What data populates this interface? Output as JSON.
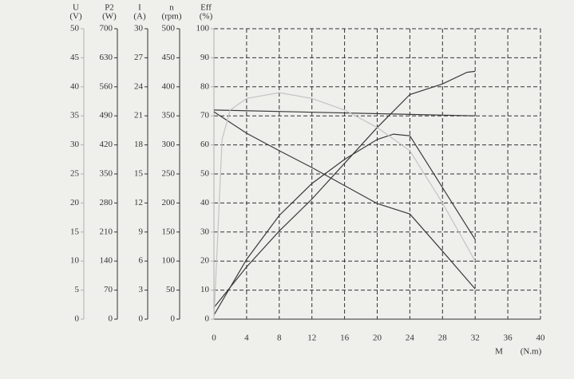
{
  "chart_data": {
    "type": "line",
    "xlabel": "M",
    "xunit": "(N.m)",
    "xlim": [
      0,
      40
    ],
    "xticks": [
      0,
      4,
      8,
      12,
      16,
      20,
      24,
      28,
      32,
      36,
      40
    ],
    "grid": true,
    "axes": [
      {
        "name": "U",
        "unit": "(V)",
        "ylim": [
          0,
          50
        ],
        "yticks": [
          0,
          5,
          10,
          15,
          20,
          25,
          30,
          35,
          40,
          45,
          50
        ],
        "color": "#b0b0b0"
      },
      {
        "name": "P2",
        "unit": "(W)",
        "ylim": [
          0,
          700
        ],
        "yticks": [
          0,
          70,
          140,
          210,
          280,
          350,
          420,
          490,
          560,
          630,
          700
        ],
        "color": "#333333"
      },
      {
        "name": "I",
        "unit": "(A)",
        "ylim": [
          0,
          30
        ],
        "yticks": [
          0,
          3,
          6,
          9,
          12,
          15,
          18,
          21,
          24,
          27,
          30
        ],
        "color": "#333333"
      },
      {
        "name": "n",
        "unit": "(rpm)",
        "ylim": [
          0,
          500
        ],
        "yticks": [
          0,
          50,
          100,
          150,
          200,
          250,
          300,
          350,
          400,
          450,
          500
        ],
        "color": "#333333"
      },
      {
        "name": "Eff",
        "unit": "(%)",
        "ylim": [
          0,
          100
        ],
        "yticks": [
          0,
          10,
          20,
          30,
          40,
          50,
          60,
          70,
          80,
          90,
          100
        ],
        "color": "#b0b0b0"
      }
    ],
    "series": [
      {
        "axis": "n",
        "color": "#3a3a3a",
        "x": [
          0,
          4,
          8,
          12,
          16,
          20,
          24,
          28,
          32
        ],
        "values": [
          357,
          320,
          290,
          261,
          230,
          199,
          181,
          117,
          52
        ]
      },
      {
        "axis": "P2",
        "color": "#3a3a3a",
        "x": [
          0,
          4,
          8,
          12,
          16,
          20,
          22,
          24,
          28,
          32
        ],
        "values": [
          10,
          144,
          250,
          327,
          385,
          433,
          446,
          442,
          317,
          192
        ]
      },
      {
        "axis": "I",
        "color": "#3a3a3a",
        "x": [
          0,
          4,
          8,
          12,
          16,
          20,
          24,
          28,
          31,
          32
        ],
        "values": [
          1.2,
          5.4,
          9.1,
          12.4,
          16.1,
          19.8,
          23.2,
          24.3,
          25.5,
          25.6
        ]
      },
      {
        "axis": "U",
        "color": "#3a3a3a",
        "x": [
          0,
          32
        ],
        "values": [
          36,
          35
        ]
      },
      {
        "axis": "Eff",
        "color": "#c4c4c4",
        "x": [
          0,
          1,
          2,
          4,
          8,
          12,
          16,
          20,
          24,
          28,
          32
        ],
        "values": [
          0,
          62,
          72,
          76,
          78,
          76,
          72,
          66,
          58,
          40,
          20
        ]
      }
    ]
  }
}
